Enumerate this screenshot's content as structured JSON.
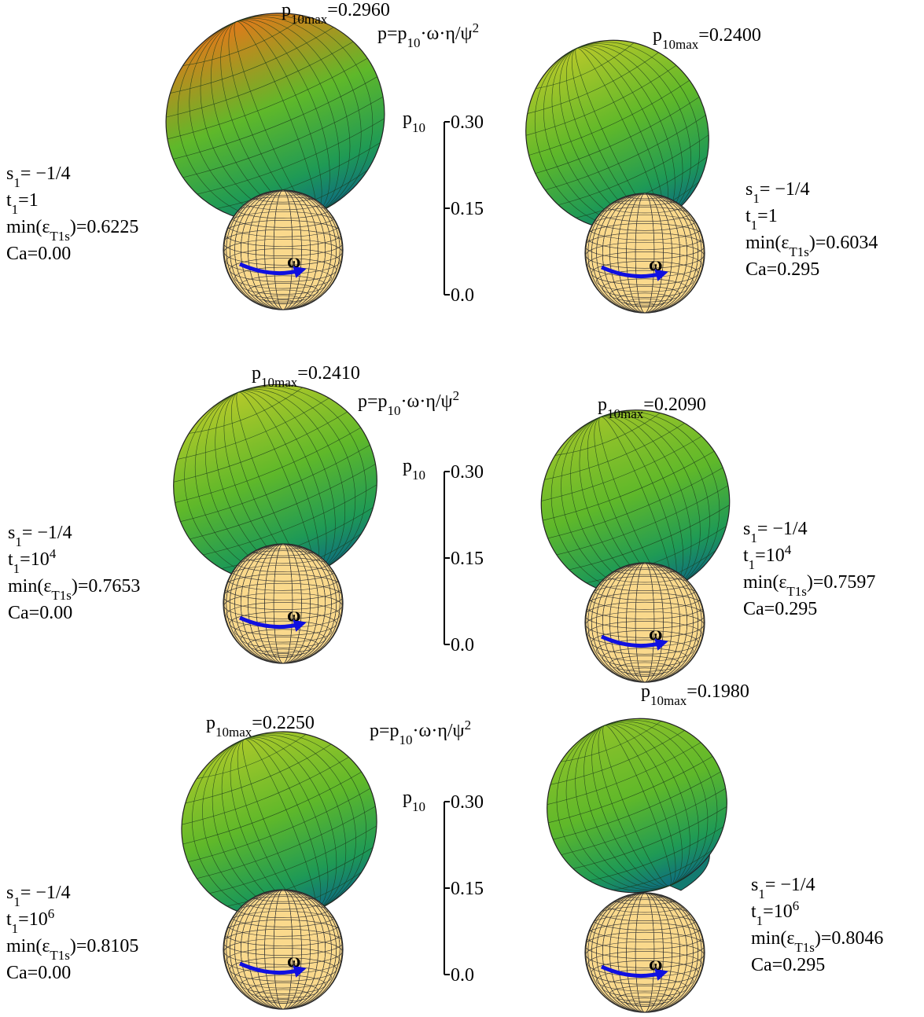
{
  "rows": [
    {
      "scale": {
        "formula": [
          {
            "text": "p=p"
          },
          {
            "sub": "10"
          },
          {
            "text": "·ω·η/ψ"
          },
          {
            "sup": "2"
          }
        ],
        "axis_label": [
          {
            "text": "p"
          },
          {
            "sub": "10"
          }
        ],
        "ticks": [
          {
            "value": 0.3,
            "label": "0.30"
          },
          {
            "value": 0.15,
            "label": "0.15"
          },
          {
            "value": 0,
            "label": "0.0"
          }
        ]
      },
      "panels": [
        {
          "pmax": [
            {
              "text": "p"
            },
            {
              "sub": "10max"
            },
            {
              "text": "=0.2960"
            }
          ],
          "params": [
            [
              {
                "text": "s"
              },
              {
                "sub": "1"
              },
              {
                "text": "= −1/4"
              }
            ],
            [
              {
                "text": "t"
              },
              {
                "sub": "1"
              },
              {
                "text": "=1"
              }
            ],
            [
              {
                "text": "min(ε"
              },
              {
                "sub": "T1s"
              },
              {
                "text": ")=0.6225"
              }
            ],
            [
              {
                "text": "Ca=0.00"
              }
            ]
          ],
          "omega": "ω"
        },
        {
          "pmax": [
            {
              "text": "p"
            },
            {
              "sub": "10max"
            },
            {
              "text": "=0.2400"
            }
          ],
          "params": [
            [
              {
                "text": "s"
              },
              {
                "sub": "1"
              },
              {
                "text": "= −1/4"
              }
            ],
            [
              {
                "text": "t"
              },
              {
                "sub": "1"
              },
              {
                "text": "=1"
              }
            ],
            [
              {
                "text": "min(ε"
              },
              {
                "sub": "T1s"
              },
              {
                "text": ")=0.6034"
              }
            ],
            [
              {
                "text": "Ca=0.295"
              }
            ]
          ],
          "omega": "ω"
        }
      ]
    },
    {
      "scale": {
        "formula": [
          {
            "text": "p=p"
          },
          {
            "sub": "10"
          },
          {
            "text": "·ω·η/ψ"
          },
          {
            "sup": "2"
          }
        ],
        "axis_label": [
          {
            "text": "p"
          },
          {
            "sub": "10"
          }
        ],
        "ticks": [
          {
            "value": 0.3,
            "label": "0.30"
          },
          {
            "value": 0.15,
            "label": "0.15"
          },
          {
            "value": 0,
            "label": "0.0"
          }
        ]
      },
      "panels": [
        {
          "pmax": [
            {
              "text": "p"
            },
            {
              "sub": "10max"
            },
            {
              "text": "=0.2410"
            }
          ],
          "params": [
            [
              {
                "text": "s"
              },
              {
                "sub": "1"
              },
              {
                "text": "= −1/4"
              }
            ],
            [
              {
                "text": "t"
              },
              {
                "sub": "1"
              },
              {
                "text": "=10"
              },
              {
                "sup": "4"
              }
            ],
            [
              {
                "text": "min(ε"
              },
              {
                "sub": "T1s"
              },
              {
                "text": ")=0.7653"
              }
            ],
            [
              {
                "text": "Ca=0.00"
              }
            ]
          ],
          "omega": "ω"
        },
        {
          "pmax": [
            {
              "text": "p"
            },
            {
              "sub": "10max"
            },
            {
              "text": "=0.2090"
            }
          ],
          "params": [
            [
              {
                "text": "s"
              },
              {
                "sub": "1"
              },
              {
                "text": "= −1/4"
              }
            ],
            [
              {
                "text": "t"
              },
              {
                "sub": "1"
              },
              {
                "text": "=10"
              },
              {
                "sup": "4"
              }
            ],
            [
              {
                "text": "min(ε"
              },
              {
                "sub": "T1s"
              },
              {
                "text": ")=0.7597"
              }
            ],
            [
              {
                "text": "Ca=0.295"
              }
            ]
          ],
          "omega": "ω"
        }
      ]
    },
    {
      "scale": {
        "formula": [
          {
            "text": "p=p"
          },
          {
            "sub": "10"
          },
          {
            "text": "·ω·η/ψ"
          },
          {
            "sup": "2"
          }
        ],
        "axis_label": [
          {
            "text": "p"
          },
          {
            "sub": "10"
          }
        ],
        "ticks": [
          {
            "value": 0.3,
            "label": "0.30"
          },
          {
            "value": 0.15,
            "label": "0.15"
          },
          {
            "value": 0,
            "label": "0.0"
          }
        ]
      },
      "panels": [
        {
          "pmax": [
            {
              "text": "p"
            },
            {
              "sub": "10max"
            },
            {
              "text": "=0.2250"
            }
          ],
          "params": [
            [
              {
                "text": "s"
              },
              {
                "sub": "1"
              },
              {
                "text": "= −1/4"
              }
            ],
            [
              {
                "text": "t"
              },
              {
                "sub": "1"
              },
              {
                "text": "=10"
              },
              {
                "sup": "6"
              }
            ],
            [
              {
                "text": "min(ε"
              },
              {
                "sub": "T1s"
              },
              {
                "text": ")=0.8105"
              }
            ],
            [
              {
                "text": "Ca=0.00"
              }
            ]
          ],
          "omega": "ω"
        },
        {
          "pmax": [
            {
              "text": "p"
            },
            {
              "sub": "10max"
            },
            {
              "text": "=0.1980"
            }
          ],
          "params": [
            [
              {
                "text": "s"
              },
              {
                "sub": "1"
              },
              {
                "text": "= −1/4"
              }
            ],
            [
              {
                "text": "t"
              },
              {
                "sub": "1"
              },
              {
                "text": "=10"
              },
              {
                "sup": "6"
              }
            ],
            [
              {
                "text": "min(ε"
              },
              {
                "sub": "T1s"
              },
              {
                "text": ")=0.8046"
              }
            ],
            [
              {
                "text": "Ca=0.295"
              }
            ]
          ],
          "omega": "ω"
        }
      ]
    }
  ]
}
